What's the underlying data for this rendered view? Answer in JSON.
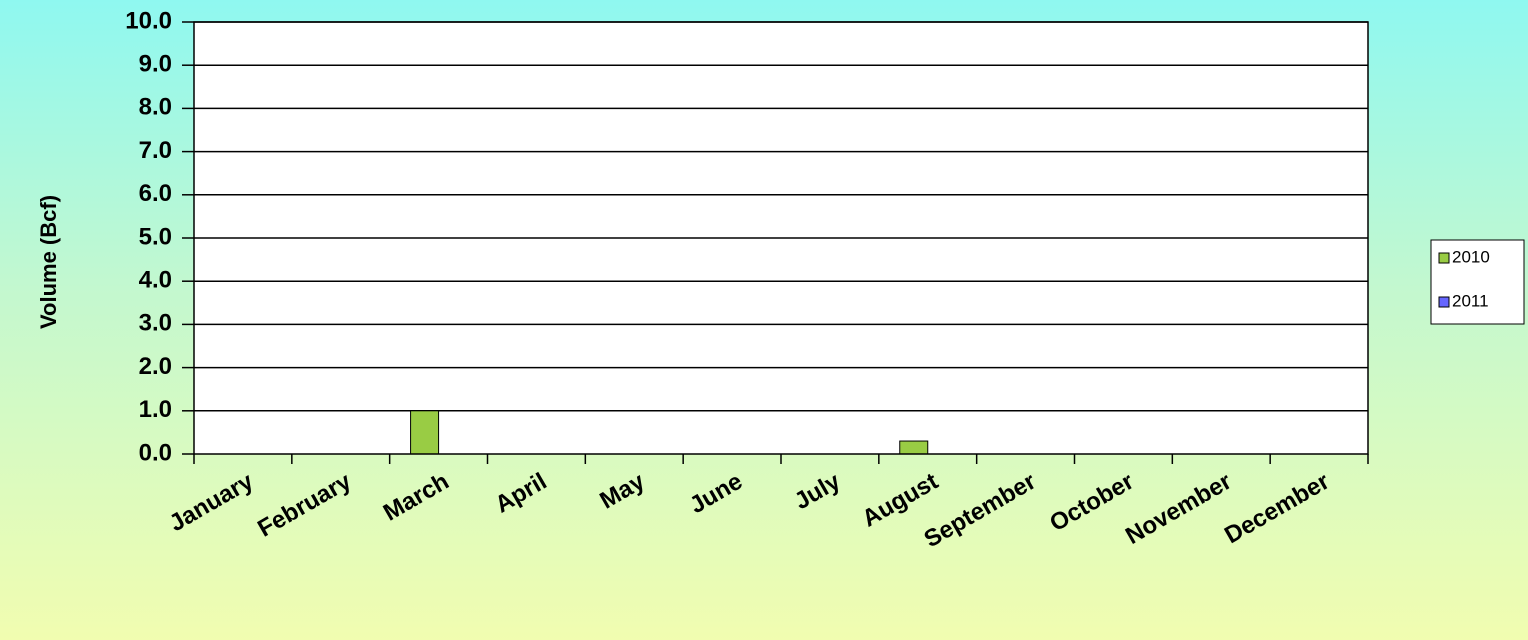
{
  "chart_data": {
    "type": "bar",
    "title": "",
    "xlabel": "",
    "ylabel": "Volume (Bcf)",
    "categories": [
      "January",
      "February",
      "March",
      "April",
      "May",
      "June",
      "July",
      "August",
      "September",
      "October",
      "November",
      "December"
    ],
    "series": [
      {
        "name": "2010",
        "color": "#99cc44",
        "values": [
          0,
          0,
          1.0,
          0,
          0,
          0,
          0,
          0.3,
          0,
          0,
          0,
          0
        ]
      },
      {
        "name": "2011",
        "color": "#6666ff",
        "values": [
          0,
          0,
          0,
          0,
          0,
          0,
          0,
          0,
          0,
          0,
          0,
          0
        ]
      }
    ],
    "ylim": [
      0,
      10
    ],
    "yticks": [
      "0.0",
      "1.0",
      "2.0",
      "3.0",
      "4.0",
      "5.0",
      "6.0",
      "7.0",
      "8.0",
      "9.0",
      "10.0"
    ],
    "grid": true,
    "legend": "right"
  }
}
